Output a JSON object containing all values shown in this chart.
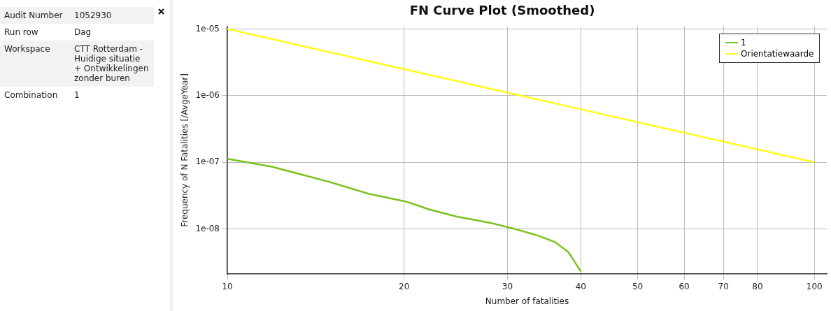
{
  "chart_data": {
    "type": "line",
    "title": "FN Curve Plot (Smoothed)",
    "xlabel": "Number of fatalities",
    "ylabel": "Frequency of N Fatalities [/AvgeYear]",
    "log": "xy",
    "grid": true,
    "legend": "top right",
    "marker": "none",
    "line_style": "solid",
    "xlim": [
      10,
      105
    ],
    "xticks": [
      10,
      20,
      30,
      40,
      50,
      60,
      70,
      80,
      100
    ],
    "ylim": [
      2.1e-09,
      1.1e-05
    ],
    "yticks": [
      {
        "value": 1e-05,
        "label": "1e-05"
      },
      {
        "value": 1e-06,
        "label": "1e-06"
      },
      {
        "value": 1e-07,
        "label": "1e-07"
      },
      {
        "value": 1e-08,
        "label": "1e-08"
      }
    ],
    "series": [
      {
        "name": "1",
        "color": "#7ac21c",
        "x": [
          10,
          11.9,
          14.9,
          17.4,
          20.1,
          22.1,
          24.6,
          28.2,
          30.9,
          33.9,
          36.1,
          38.1,
          40
        ],
        "values": [
          1.13e-07,
          8.6e-08,
          5.1e-08,
          3.37e-08,
          2.59e-08,
          1.96e-08,
          1.53e-08,
          1.22e-08,
          1e-08,
          7.9e-09,
          6.4e-09,
          4.5e-09,
          2.3e-09
        ]
      },
      {
        "name": "Orientatiewaarde",
        "color": "#ffff1a",
        "x": [
          10,
          20,
          40,
          100
        ],
        "values": [
          1e-05,
          2.5e-06,
          6.25e-07,
          1e-07
        ]
      }
    ],
    "annotations": [
      "Audit Number",
      "1052930",
      "Run row",
      "Dag",
      "Workspace",
      "CTT Rotterdam - Huidige situatie + Ontwikkelingen zonder buren",
      "Combination",
      "1"
    ]
  }
}
